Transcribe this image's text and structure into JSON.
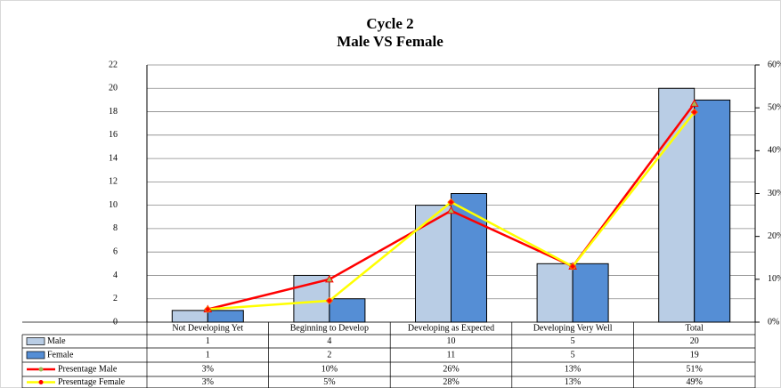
{
  "chart_data": {
    "type": "bar",
    "title": "Cycle 2",
    "subtitle": "Male VS Female",
    "categories": [
      "Not Developing Yet",
      "Beginning to Develop",
      "Developing as Expected",
      "Developing Very Well",
      "Total"
    ],
    "series": [
      {
        "name": "Male",
        "color": "#b9cde5",
        "values": [
          1,
          4,
          10,
          5,
          20
        ]
      },
      {
        "name": "Female",
        "color": "#558ed5",
        "values": [
          1,
          2,
          11,
          5,
          19
        ]
      },
      {
        "name": "Presentage Male",
        "color": "#ff0000",
        "type": "line",
        "axis": "y2",
        "values": [
          3,
          10,
          26,
          13,
          51
        ],
        "value_labels": [
          "3%",
          "10%",
          "26%",
          "13%",
          "51%"
        ]
      },
      {
        "name": "Presentage Female",
        "color": "#ffff00",
        "type": "line",
        "axis": "y2",
        "values": [
          3,
          5,
          28,
          13,
          49
        ],
        "value_labels": [
          "3%",
          "5%",
          "28%",
          "13%",
          "49%"
        ]
      }
    ],
    "ylim": [
      0,
      22
    ],
    "yticks": [
      0,
      2,
      4,
      6,
      8,
      10,
      12,
      14,
      16,
      18,
      20,
      22
    ],
    "y2lim": [
      0,
      60
    ],
    "y2ticks": [
      {
        "value": 0,
        "label": "0%"
      },
      {
        "value": 10,
        "label": "10%"
      },
      {
        "value": 20,
        "label": "20%"
      },
      {
        "value": 30,
        "label": "30%"
      },
      {
        "value": 40,
        "label": "40%"
      },
      {
        "value": 50,
        "label": "50%"
      },
      {
        "value": 60,
        "label": "60%"
      }
    ],
    "grid": true
  }
}
